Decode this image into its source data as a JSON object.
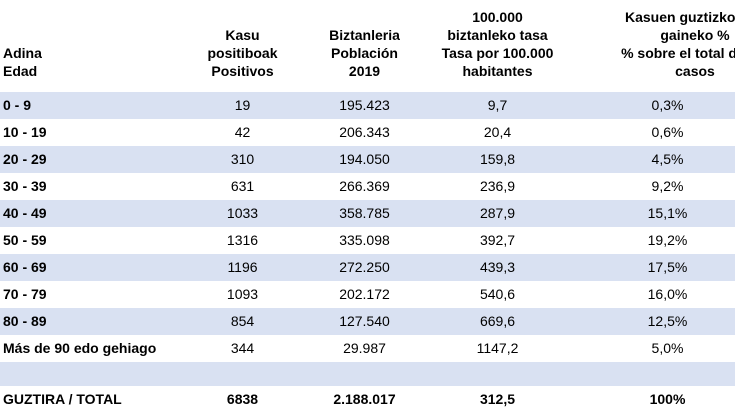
{
  "header": {
    "age": [
      "Adina",
      "Edad"
    ],
    "cases": [
      "Kasu",
      "positiboak",
      "Positivos"
    ],
    "population": [
      "Biztanleria",
      "Población",
      "2019"
    ],
    "rate": [
      "100.000",
      "biztanleko tasa",
      "Tasa por 100.000",
      "habitantes"
    ],
    "percent": [
      "Kasuen guztizkoaren",
      "gaineko %",
      "% sobre el total de los",
      "casos"
    ]
  },
  "rows": [
    {
      "age": "0 - 9",
      "cases": "19",
      "population": "195.423",
      "rate": "9,7",
      "percent": "0,3%"
    },
    {
      "age": "10 - 19",
      "cases": "42",
      "population": "206.343",
      "rate": "20,4",
      "percent": "0,6%"
    },
    {
      "age": "20 - 29",
      "cases": "310",
      "population": "194.050",
      "rate": "159,8",
      "percent": "4,5%"
    },
    {
      "age": "30 - 39",
      "cases": "631",
      "population": "266.369",
      "rate": "236,9",
      "percent": "9,2%"
    },
    {
      "age": "40 - 49",
      "cases": "1033",
      "population": "358.785",
      "rate": "287,9",
      "percent": "15,1%"
    },
    {
      "age": "50 - 59",
      "cases": "1316",
      "population": "335.098",
      "rate": "392,7",
      "percent": "19,2%"
    },
    {
      "age": "60 - 69",
      "cases": "1196",
      "population": "272.250",
      "rate": "439,3",
      "percent": "17,5%"
    },
    {
      "age": "70 - 79",
      "cases": "1093",
      "population": "202.172",
      "rate": "540,6",
      "percent": "16,0%"
    },
    {
      "age": "80 - 89",
      "cases": "854",
      "population": "127.540",
      "rate": "669,6",
      "percent": "12,5%"
    },
    {
      "age": "Más de 90 edo gehiago",
      "cases": "344",
      "population": "29.987",
      "rate": "1147,2",
      "percent": "5,0%"
    }
  ],
  "total": {
    "age": "GUZTIRA / TOTAL",
    "cases": "6838",
    "population": "2.188.017",
    "rate": "312,5",
    "percent": "100%"
  },
  "colors": {
    "shaded_row": "#d9e1f2"
  }
}
